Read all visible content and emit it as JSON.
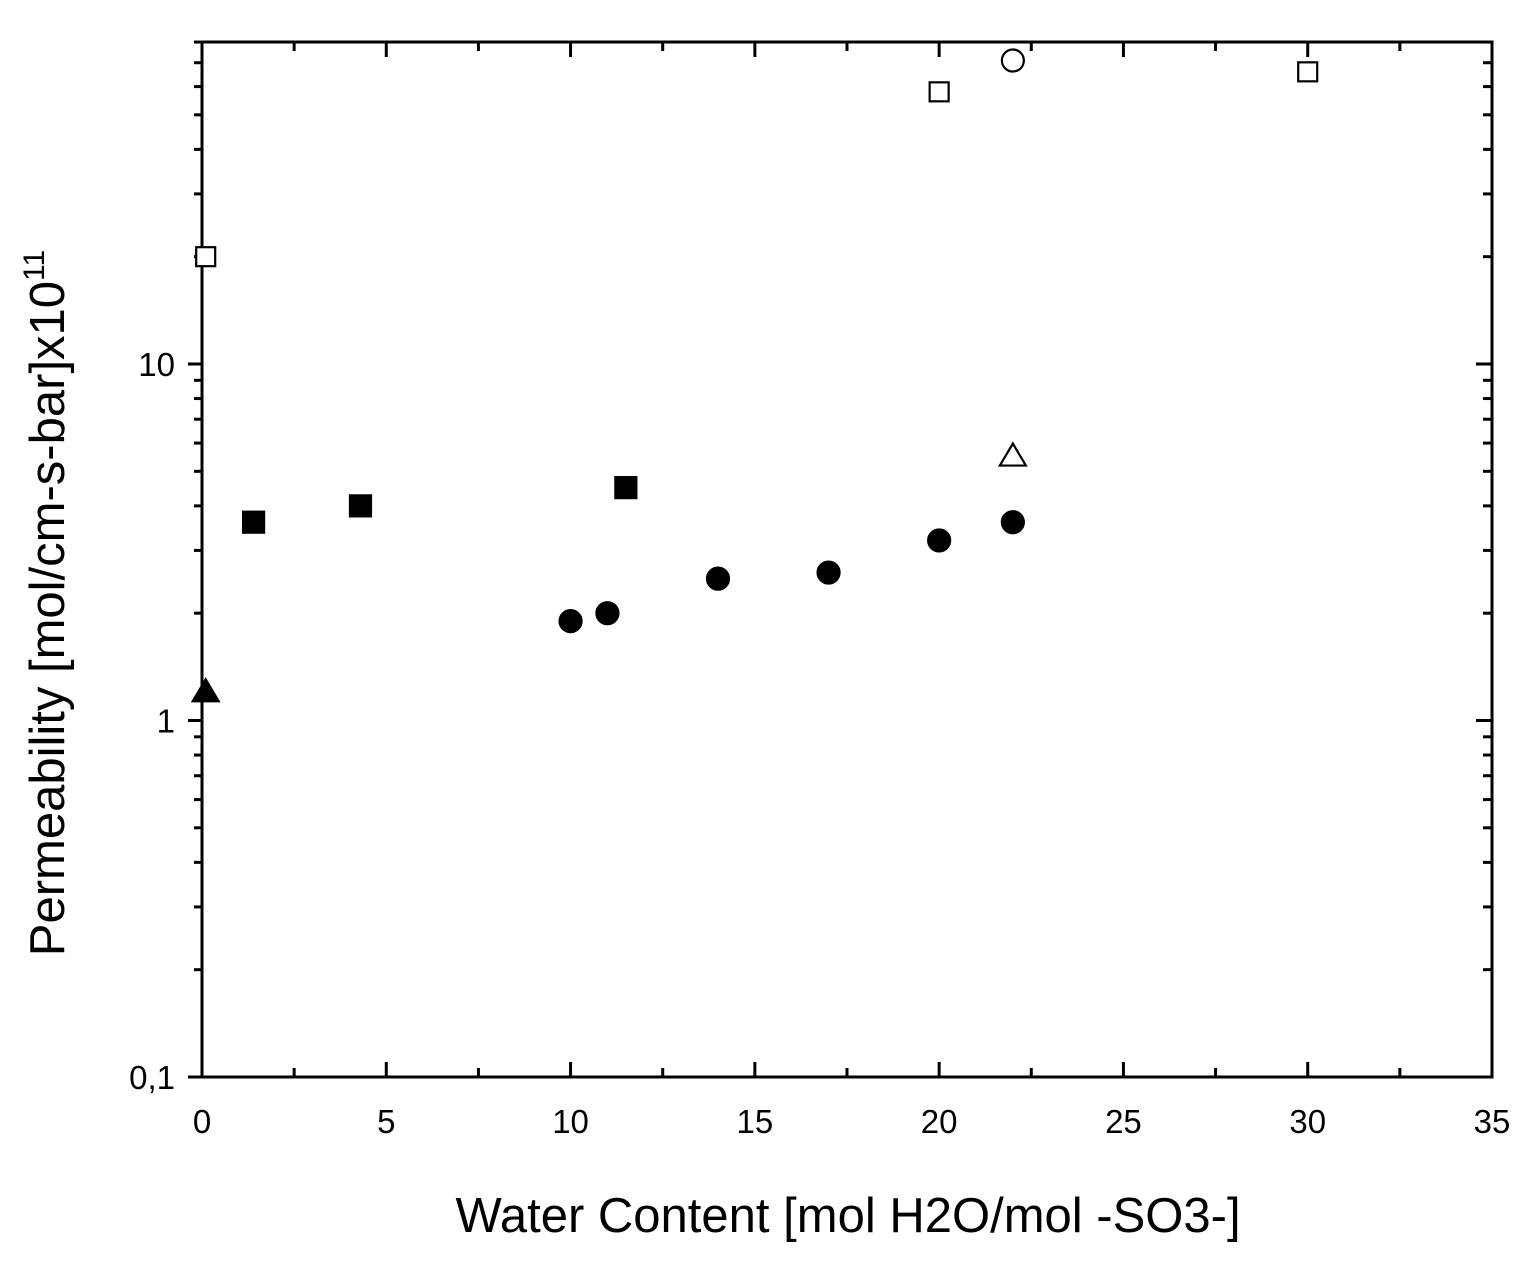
{
  "chart_data": {
    "type": "scatter",
    "xlabel": "Water Content [mol H2O/mol -SO3-]",
    "ylabel": "Permeability [mol/cm-s-bar]x10",
    "ylabel_exponent": "11",
    "xlim": [
      0,
      35
    ],
    "ylim": [
      0.1,
      80
    ],
    "yscale": "log",
    "grid": false,
    "x_ticks": [
      0,
      5,
      10,
      15,
      20,
      25,
      30,
      35
    ],
    "x_tick_labels": [
      "0",
      "5",
      "10",
      "15",
      "20",
      "25",
      "30",
      "35"
    ],
    "y_ticks": [
      0.1,
      1,
      10
    ],
    "y_tick_labels": [
      "0,1",
      "1",
      "10"
    ],
    "series": [
      {
        "marker": "square-filled",
        "points": [
          [
            1.4,
            3.6
          ],
          [
            4.3,
            4.0
          ],
          [
            11.5,
            4.5
          ]
        ]
      },
      {
        "marker": "circle-filled",
        "points": [
          [
            10,
            1.9
          ],
          [
            11,
            2.0
          ],
          [
            14,
            2.5
          ],
          [
            17,
            2.6
          ],
          [
            20,
            3.2
          ],
          [
            22,
            3.6
          ]
        ]
      },
      {
        "marker": "triangle-filled",
        "points": [
          [
            0.1,
            1.2
          ]
        ]
      },
      {
        "marker": "square-open",
        "points": [
          [
            0.1,
            20
          ],
          [
            20,
            58
          ],
          [
            30,
            66
          ]
        ]
      },
      {
        "marker": "circle-open",
        "points": [
          [
            22,
            71
          ]
        ]
      },
      {
        "marker": "triangle-open",
        "points": [
          [
            22,
            5.5
          ]
        ]
      }
    ]
  }
}
